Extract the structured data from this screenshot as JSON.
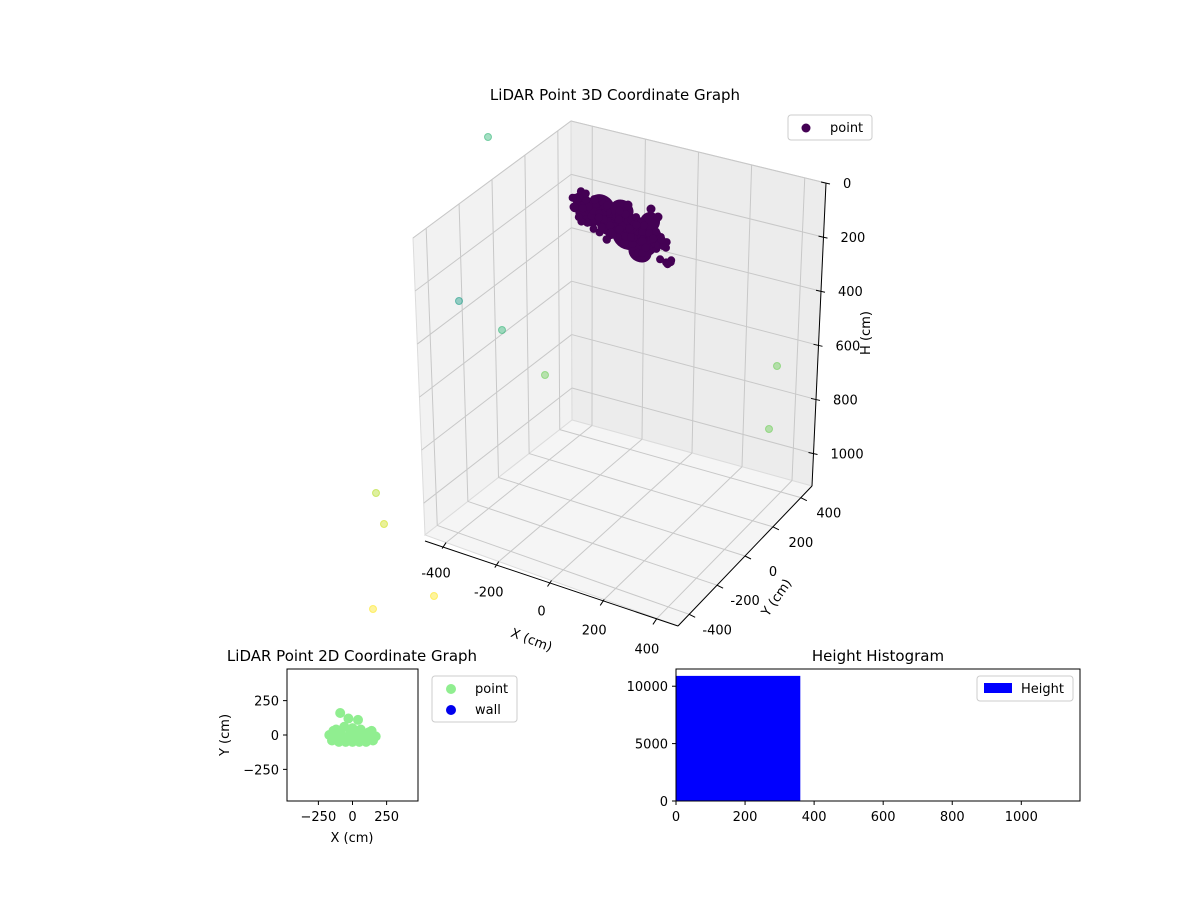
{
  "chart_data": [
    {
      "type": "scatter3d",
      "title": "LiDAR Point 3D Coordinate Graph",
      "xlabel": "X (cm)",
      "ylabel": "Y (cm)",
      "zlabel": "H (cm)",
      "xticks": [
        -400,
        -200,
        0,
        200,
        400
      ],
      "yticks": [
        -400,
        -200,
        0,
        200,
        400
      ],
      "zticks": [
        0,
        200,
        400,
        600,
        800,
        1000
      ],
      "z_inverted": true,
      "legend": {
        "position": "top-right",
        "entries": [
          {
            "label": "point",
            "color": "#440154"
          }
        ]
      },
      "cluster": {
        "color": "#440154",
        "note_h_range": [
          0,
          80
        ]
      },
      "outliers": [
        {
          "color": "#35b779"
        },
        {
          "color": "#1f9e89"
        },
        {
          "color": "#35b779"
        },
        {
          "color": "#6ece58"
        },
        {
          "color": "#6ece58"
        },
        {
          "color": "#6ece58"
        },
        {
          "color": "#b5de2b"
        },
        {
          "color": "#d0e11c"
        },
        {
          "color": "#fde725"
        },
        {
          "color": "#fde725"
        }
      ]
    },
    {
      "type": "scatter",
      "title": "LiDAR Point 2D Coordinate Graph",
      "xlabel": "X (cm)",
      "ylabel": "Y (cm)",
      "xlim": [
        -480,
        480
      ],
      "ylim": [
        -480,
        480
      ],
      "xticks": [
        -250,
        0,
        250
      ],
      "yticks": [
        -250,
        0,
        250
      ],
      "legend": {
        "position": "outside-right",
        "entries": [
          {
            "label": "point",
            "color": "#90ee90"
          },
          {
            "label": "wall",
            "color": "#0000ee"
          }
        ]
      },
      "point_color": "#90ee90",
      "points": [
        [
          -90,
          160
        ],
        [
          -30,
          120
        ],
        [
          40,
          110
        ],
        [
          -120,
          40
        ],
        [
          -60,
          60
        ],
        [
          0,
          50
        ],
        [
          60,
          40
        ],
        [
          120,
          20
        ],
        [
          -170,
          0
        ],
        [
          -130,
          -10
        ],
        [
          -80,
          -10
        ],
        [
          -30,
          -20
        ],
        [
          20,
          -10
        ],
        [
          70,
          -10
        ],
        [
          120,
          -10
        ],
        [
          170,
          -10
        ],
        [
          -150,
          -40
        ],
        [
          -100,
          -50
        ],
        [
          -50,
          -50
        ],
        [
          0,
          -50
        ],
        [
          50,
          -50
        ],
        [
          100,
          -50
        ],
        [
          150,
          -40
        ],
        [
          -90,
          20
        ],
        [
          30,
          20
        ],
        [
          -20,
          10
        ],
        [
          90,
          10
        ],
        [
          -140,
          30
        ],
        [
          140,
          30
        ],
        [
          -60,
          -30
        ],
        [
          60,
          -30
        ]
      ]
    },
    {
      "type": "histogram",
      "title": "Height Histogram",
      "xlim": [
        0,
        1170
      ],
      "ylim": [
        0,
        11500
      ],
      "xticks": [
        0,
        200,
        400,
        600,
        800,
        1000
      ],
      "yticks": [
        0,
        5000,
        10000
      ],
      "legend": {
        "position": "top-right",
        "entries": [
          {
            "label": "Height",
            "color": "#0000ff"
          }
        ]
      },
      "bars": [
        {
          "x0": 0,
          "x1": 360,
          "count": 10900,
          "color": "#0000ff"
        }
      ]
    }
  ]
}
